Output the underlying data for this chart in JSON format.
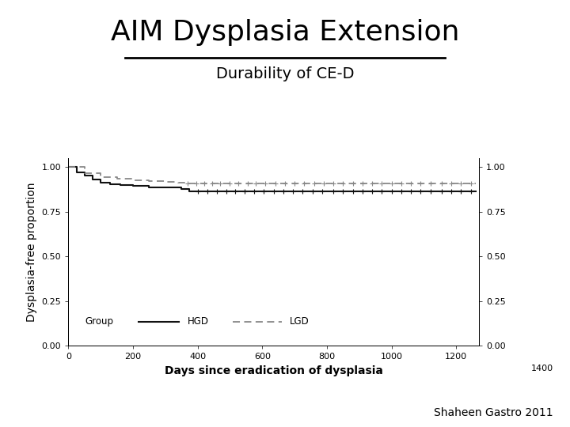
{
  "title": "AIM Dysplasia Extension",
  "subtitle": "Durability of CE-D",
  "xlabel": "Days since eradication of dysplasia",
  "ylabel": "Dysplasia-free proportion",
  "credit": "Shaheen Gastro 2011",
  "xlim": [
    0,
    1270
  ],
  "xlim_extra": 1400,
  "ylim": [
    0.0,
    1.05
  ],
  "xticks": [
    0,
    200,
    400,
    600,
    800,
    1000,
    1200
  ],
  "yticks": [
    0.0,
    0.25,
    0.5,
    0.75,
    1.0
  ],
  "hgd_color": "#111111",
  "lgd_color": "#888888",
  "hgd_x": [
    0,
    25,
    50,
    75,
    100,
    130,
    160,
    200,
    250,
    300,
    350,
    375,
    390,
    400,
    1260
  ],
  "hgd_y": [
    1.0,
    0.97,
    0.95,
    0.93,
    0.91,
    0.905,
    0.9,
    0.895,
    0.885,
    0.885,
    0.875,
    0.862,
    0.862,
    0.862,
    0.862
  ],
  "lgd_x": [
    0,
    50,
    100,
    150,
    200,
    250,
    300,
    340,
    360,
    380,
    400,
    1260
  ],
  "lgd_y": [
    1.0,
    0.965,
    0.945,
    0.935,
    0.925,
    0.921,
    0.915,
    0.912,
    0.908,
    0.906,
    0.906,
    0.906
  ],
  "hgd_censors_x": [
    400,
    430,
    460,
    490,
    515,
    545,
    575,
    605,
    635,
    665,
    695,
    725,
    755,
    785,
    820,
    850,
    880,
    910,
    940,
    970,
    1000,
    1030,
    1060,
    1090,
    1120,
    1155,
    1185,
    1215,
    1245
  ],
  "hgd_censors_y": [
    0.862,
    0.862,
    0.862,
    0.862,
    0.862,
    0.862,
    0.862,
    0.862,
    0.862,
    0.862,
    0.862,
    0.862,
    0.862,
    0.862,
    0.862,
    0.862,
    0.862,
    0.862,
    0.862,
    0.862,
    0.862,
    0.862,
    0.862,
    0.862,
    0.862,
    0.862,
    0.862,
    0.862,
    0.862
  ],
  "lgd_censors_x": [
    370,
    395,
    420,
    445,
    470,
    500,
    525,
    555,
    580,
    610,
    640,
    670,
    700,
    730,
    760,
    790,
    820,
    850,
    880,
    910,
    940,
    970,
    1000,
    1030,
    1060,
    1090,
    1120,
    1155,
    1185,
    1215,
    1245
  ],
  "lgd_censors_y": [
    0.906,
    0.906,
    0.906,
    0.906,
    0.906,
    0.906,
    0.906,
    0.906,
    0.906,
    0.906,
    0.906,
    0.906,
    0.906,
    0.906,
    0.906,
    0.906,
    0.906,
    0.906,
    0.906,
    0.906,
    0.906,
    0.906,
    0.906,
    0.906,
    0.906,
    0.906,
    0.906,
    0.906,
    0.906,
    0.906,
    0.906
  ],
  "background_color": "#ffffff",
  "title_fontsize": 26,
  "subtitle_fontsize": 14,
  "axis_fontsize": 8,
  "label_fontsize": 10,
  "credit_fontsize": 10
}
